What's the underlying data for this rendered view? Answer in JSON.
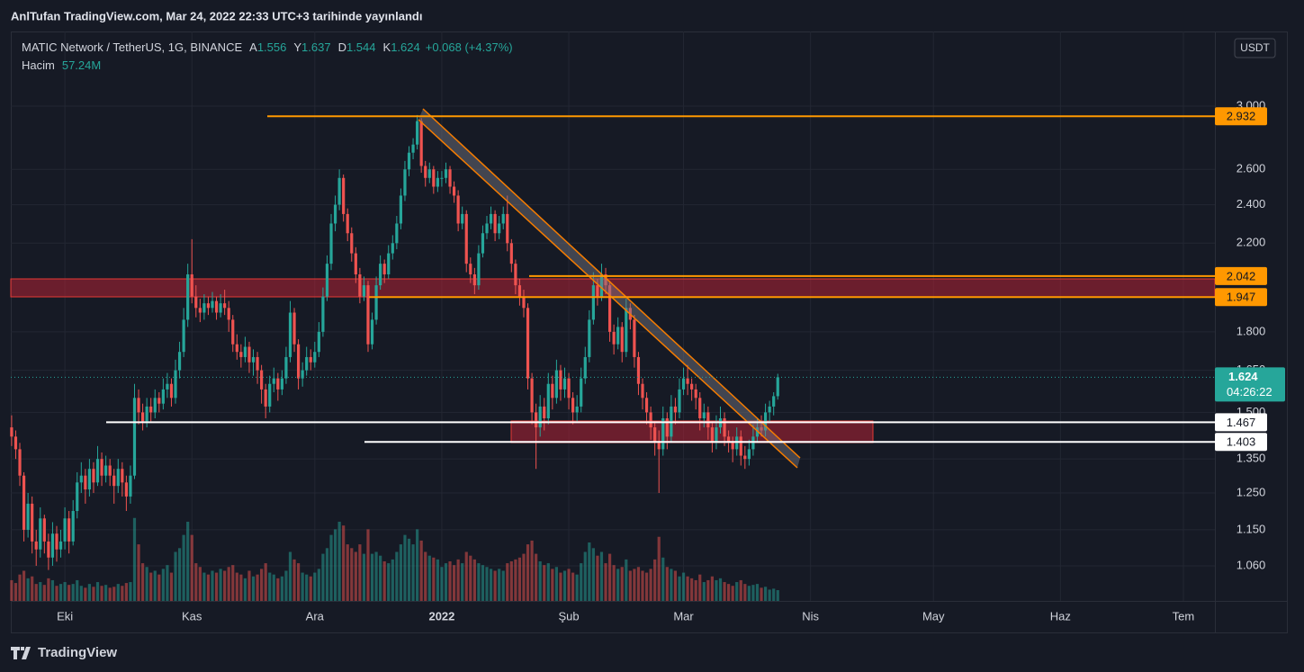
{
  "header": "AnlTufan TradingView.com, Mar 24, 2022 22:33 UTC+3 tarihinde yayınlandı",
  "brand": "TradingView",
  "currency": "USDT",
  "chart_data": {
    "type": "candlestick",
    "title": "MATIC Network / TetherUS, 1G, BINANCE",
    "ohlc_labels": [
      "A",
      "Y",
      "D",
      "K"
    ],
    "change_label": "+0.068 (+4.37%)",
    "countdown": "04:26:22",
    "log_scale": true,
    "grid": true,
    "up_color": "#26a69a",
    "down_color": "#ef5350",
    "xlim": [
      -0.2,
      293.7
    ],
    "xticks": [
      {
        "value": 13,
        "label": "Eki"
      },
      {
        "value": 44,
        "label": "Kas"
      },
      {
        "value": 74,
        "label": "Ara"
      },
      {
        "value": 105,
        "label": "2022"
      },
      {
        "value": 136,
        "label": "Şub"
      },
      {
        "value": 164,
        "label": "Mar"
      },
      {
        "value": 195,
        "label": "Nis"
      },
      {
        "value": 225,
        "label": "May"
      },
      {
        "value": 256,
        "label": "Haz"
      },
      {
        "value": 286,
        "label": "Tem"
      }
    ],
    "ylim": [
      0.979,
      3.552
    ],
    "yticks": [
      {
        "value": 3,
        "label": "3.000"
      },
      {
        "value": 2.6,
        "label": "2.600"
      },
      {
        "value": 2.4,
        "label": "2.400"
      },
      {
        "value": 2.2,
        "label": "2.200"
      },
      {
        "value": 1.8,
        "label": "1.800"
      },
      {
        "value": 1.65,
        "label": "1.650"
      },
      {
        "value": 1.5,
        "label": "1.500"
      },
      {
        "value": 1.35,
        "label": "1.350"
      },
      {
        "value": 1.25,
        "label": "1.250"
      },
      {
        "value": 1.15,
        "label": "1.150"
      },
      {
        "value": 1.06,
        "label": "1.060"
      }
    ],
    "levels": [
      {
        "value": 2.932,
        "color": "#ff9800"
      },
      {
        "value": 2.042,
        "color": "#ff9800"
      },
      {
        "value": 1.947,
        "color": "#ff9800"
      },
      {
        "value": 1.467,
        "color": "#ffffff"
      },
      {
        "value": 1.403,
        "color": "#ffffff"
      }
    ],
    "candles": [
      [
        1.45,
        1.49,
        1.39,
        1.42
      ],
      [
        1.42,
        1.44,
        1.35,
        1.38
      ],
      [
        1.38,
        1.4,
        1.27,
        1.3
      ],
      [
        1.3,
        1.31,
        1.12,
        1.15
      ],
      [
        1.15,
        1.25,
        1.13,
        1.22
      ],
      [
        1.22,
        1.24,
        1.09,
        1.12
      ],
      [
        1.12,
        1.15,
        1.06,
        1.1
      ],
      [
        1.1,
        1.21,
        1.08,
        1.18
      ],
      [
        1.18,
        1.19,
        1.09,
        1.12
      ],
      [
        1.12,
        1.14,
        1.05,
        1.08
      ],
      [
        1.08,
        1.17,
        1.06,
        1.14
      ],
      [
        1.14,
        1.16,
        1.07,
        1.1
      ],
      [
        1.1,
        1.15,
        1.08,
        1.12
      ],
      [
        1.12,
        1.21,
        1.1,
        1.18
      ],
      [
        1.18,
        1.2,
        1.09,
        1.12
      ],
      [
        1.12,
        1.23,
        1.11,
        1.2
      ],
      [
        1.2,
        1.31,
        1.18,
        1.28
      ],
      [
        1.28,
        1.34,
        1.25,
        1.3
      ],
      [
        1.3,
        1.32,
        1.22,
        1.26
      ],
      [
        1.26,
        1.35,
        1.24,
        1.32
      ],
      [
        1.32,
        1.34,
        1.25,
        1.28
      ],
      [
        1.28,
        1.39,
        1.27,
        1.35
      ],
      [
        1.35,
        1.37,
        1.27,
        1.3
      ],
      [
        1.3,
        1.36,
        1.28,
        1.33
      ],
      [
        1.33,
        1.35,
        1.27,
        1.3
      ],
      [
        1.3,
        1.32,
        1.22,
        1.27
      ],
      [
        1.27,
        1.35,
        1.25,
        1.32
      ],
      [
        1.32,
        1.34,
        1.24,
        1.28
      ],
      [
        1.28,
        1.3,
        1.2,
        1.24
      ],
      [
        1.24,
        1.33,
        1.22,
        1.3
      ],
      [
        1.3,
        1.6,
        1.29,
        1.55
      ],
      [
        1.55,
        1.58,
        1.46,
        1.5
      ],
      [
        1.5,
        1.53,
        1.44,
        1.47
      ],
      [
        1.47,
        1.55,
        1.45,
        1.52
      ],
      [
        1.52,
        1.55,
        1.47,
        1.5
      ],
      [
        1.5,
        1.58,
        1.48,
        1.55
      ],
      [
        1.55,
        1.57,
        1.5,
        1.53
      ],
      [
        1.53,
        1.62,
        1.51,
        1.58
      ],
      [
        1.58,
        1.64,
        1.55,
        1.6
      ],
      [
        1.6,
        1.62,
        1.52,
        1.55
      ],
      [
        1.55,
        1.69,
        1.53,
        1.65
      ],
      [
        1.65,
        1.76,
        1.62,
        1.72
      ],
      [
        1.72,
        1.9,
        1.7,
        1.85
      ],
      [
        1.85,
        2.1,
        1.82,
        2.05
      ],
      [
        2.05,
        2.22,
        1.92,
        1.95
      ],
      [
        1.95,
        2.0,
        1.86,
        1.9
      ],
      [
        1.9,
        1.94,
        1.84,
        1.88
      ],
      [
        1.88,
        1.96,
        1.85,
        1.92
      ],
      [
        1.92,
        1.95,
        1.87,
        1.9
      ],
      [
        1.9,
        1.97,
        1.88,
        1.93
      ],
      [
        1.93,
        1.95,
        1.85,
        1.88
      ],
      [
        1.88,
        1.96,
        1.86,
        1.92
      ],
      [
        1.92,
        1.98,
        1.87,
        1.9
      ],
      [
        1.9,
        1.93,
        1.8,
        1.85
      ],
      [
        1.85,
        1.87,
        1.72,
        1.75
      ],
      [
        1.75,
        1.79,
        1.69,
        1.72
      ],
      [
        1.72,
        1.75,
        1.66,
        1.7
      ],
      [
        1.7,
        1.78,
        1.68,
        1.74
      ],
      [
        1.74,
        1.76,
        1.64,
        1.68
      ],
      [
        1.68,
        1.73,
        1.63,
        1.7
      ],
      [
        1.7,
        1.72,
        1.6,
        1.65
      ],
      [
        1.65,
        1.67,
        1.53,
        1.58
      ],
      [
        1.58,
        1.6,
        1.48,
        1.52
      ],
      [
        1.52,
        1.63,
        1.5,
        1.6
      ],
      [
        1.6,
        1.66,
        1.57,
        1.62
      ],
      [
        1.62,
        1.64,
        1.54,
        1.58
      ],
      [
        1.58,
        1.65,
        1.56,
        1.62
      ],
      [
        1.62,
        1.74,
        1.6,
        1.7
      ],
      [
        1.7,
        1.93,
        1.68,
        1.88
      ],
      [
        1.88,
        1.9,
        1.72,
        1.75
      ],
      [
        1.75,
        1.77,
        1.58,
        1.62
      ],
      [
        1.62,
        1.68,
        1.59,
        1.65
      ],
      [
        1.65,
        1.74,
        1.63,
        1.7
      ],
      [
        1.7,
        1.73,
        1.65,
        1.68
      ],
      [
        1.68,
        1.76,
        1.66,
        1.72
      ],
      [
        1.72,
        1.84,
        1.7,
        1.8
      ],
      [
        1.8,
        1.99,
        1.78,
        1.95
      ],
      [
        1.95,
        2.14,
        1.93,
        2.1
      ],
      [
        2.1,
        2.35,
        2.07,
        2.3
      ],
      [
        2.3,
        2.45,
        2.26,
        2.4
      ],
      [
        2.4,
        2.6,
        2.37,
        2.55
      ],
      [
        2.55,
        2.57,
        2.31,
        2.35
      ],
      [
        2.35,
        2.38,
        2.21,
        2.25
      ],
      [
        2.25,
        2.28,
        2.11,
        2.15
      ],
      [
        2.15,
        2.18,
        2.01,
        2.05
      ],
      [
        2.05,
        2.08,
        1.92,
        1.95
      ],
      [
        1.95,
        2.04,
        1.93,
        2.0
      ],
      [
        2.0,
        2.02,
        1.72,
        1.75
      ],
      [
        1.75,
        1.88,
        1.73,
        1.85
      ],
      [
        1.85,
        2.04,
        1.83,
        2.0
      ],
      [
        2.0,
        2.14,
        1.98,
        2.1
      ],
      [
        2.1,
        2.12,
        2.01,
        2.05
      ],
      [
        2.05,
        2.19,
        2.03,
        2.15
      ],
      [
        2.15,
        2.24,
        2.12,
        2.2
      ],
      [
        2.2,
        2.34,
        2.17,
        2.3
      ],
      [
        2.3,
        2.49,
        2.27,
        2.45
      ],
      [
        2.45,
        2.65,
        2.42,
        2.6
      ],
      [
        2.6,
        2.74,
        2.56,
        2.7
      ],
      [
        2.7,
        2.79,
        2.66,
        2.75
      ],
      [
        2.75,
        2.94,
        2.72,
        2.9
      ],
      [
        2.9,
        2.92,
        2.58,
        2.62
      ],
      [
        2.62,
        2.65,
        2.5,
        2.55
      ],
      [
        2.55,
        2.64,
        2.52,
        2.6
      ],
      [
        2.6,
        2.62,
        2.46,
        2.5
      ],
      [
        2.5,
        2.59,
        2.47,
        2.55
      ],
      [
        2.55,
        2.59,
        2.5,
        2.55
      ],
      [
        2.55,
        2.64,
        2.52,
        2.6
      ],
      [
        2.6,
        2.62,
        2.46,
        2.5
      ],
      [
        2.5,
        2.53,
        2.41,
        2.45
      ],
      [
        2.45,
        2.48,
        2.26,
        2.3
      ],
      [
        2.3,
        2.39,
        2.27,
        2.35
      ],
      [
        2.35,
        2.37,
        2.06,
        2.1
      ],
      [
        2.1,
        2.13,
        2.01,
        2.05
      ],
      [
        2.05,
        2.08,
        1.96,
        2.0
      ],
      [
        2.0,
        2.19,
        1.98,
        2.15
      ],
      [
        2.15,
        2.29,
        2.13,
        2.25
      ],
      [
        2.25,
        2.34,
        2.22,
        2.3
      ],
      [
        2.3,
        2.39,
        2.27,
        2.35
      ],
      [
        2.35,
        2.37,
        2.21,
        2.25
      ],
      [
        2.25,
        2.34,
        2.22,
        2.3
      ],
      [
        2.3,
        2.39,
        2.27,
        2.35
      ],
      [
        2.35,
        2.45,
        2.16,
        2.2
      ],
      [
        2.2,
        2.22,
        2.06,
        2.1
      ],
      [
        2.1,
        2.12,
        1.96,
        2.0
      ],
      [
        2.0,
        2.03,
        1.91,
        1.95
      ],
      [
        1.95,
        1.98,
        1.86,
        1.9
      ],
      [
        1.9,
        1.92,
        1.58,
        1.62
      ],
      [
        1.62,
        1.64,
        1.46,
        1.5
      ],
      [
        1.5,
        1.53,
        1.32,
        1.45
      ],
      [
        1.45,
        1.56,
        1.42,
        1.52
      ],
      [
        1.52,
        1.55,
        1.44,
        1.48
      ],
      [
        1.48,
        1.64,
        1.46,
        1.6
      ],
      [
        1.6,
        1.63,
        1.51,
        1.55
      ],
      [
        1.55,
        1.69,
        1.53,
        1.65
      ],
      [
        1.65,
        1.67,
        1.54,
        1.58
      ],
      [
        1.58,
        1.66,
        1.55,
        1.62
      ],
      [
        1.62,
        1.64,
        1.51,
        1.55
      ],
      [
        1.55,
        1.57,
        1.46,
        1.5
      ],
      [
        1.5,
        1.56,
        1.47,
        1.52
      ],
      [
        1.52,
        1.66,
        1.5,
        1.62
      ],
      [
        1.62,
        1.74,
        1.6,
        1.7
      ],
      [
        1.7,
        1.89,
        1.68,
        1.85
      ],
      [
        1.85,
        2.06,
        1.83,
        2.0
      ],
      [
        2.0,
        2.03,
        1.91,
        1.95
      ],
      [
        1.95,
        2.1,
        1.93,
        2.05
      ],
      [
        2.05,
        2.08,
        1.96,
        2.0
      ],
      [
        2.0,
        2.02,
        1.76,
        1.8
      ],
      [
        1.8,
        1.83,
        1.71,
        1.75
      ],
      [
        1.75,
        1.86,
        1.73,
        1.82
      ],
      [
        1.82,
        1.84,
        1.68,
        1.72
      ],
      [
        1.72,
        1.94,
        1.7,
        1.9
      ],
      [
        1.9,
        1.92,
        1.81,
        1.85
      ],
      [
        1.85,
        1.87,
        1.66,
        1.7
      ],
      [
        1.7,
        1.72,
        1.56,
        1.6
      ],
      [
        1.6,
        1.62,
        1.51,
        1.55
      ],
      [
        1.55,
        1.57,
        1.46,
        1.5
      ],
      [
        1.5,
        1.52,
        1.41,
        1.45
      ],
      [
        1.45,
        1.47,
        1.36,
        1.4
      ],
      [
        1.4,
        1.44,
        1.25,
        1.38
      ],
      [
        1.38,
        1.52,
        1.36,
        1.48
      ],
      [
        1.48,
        1.5,
        1.38,
        1.42
      ],
      [
        1.42,
        1.56,
        1.4,
        1.52
      ],
      [
        1.52,
        1.55,
        1.46,
        1.5
      ],
      [
        1.5,
        1.62,
        1.48,
        1.58
      ],
      [
        1.58,
        1.66,
        1.56,
        1.62
      ],
      [
        1.62,
        1.67,
        1.56,
        1.6
      ],
      [
        1.6,
        1.62,
        1.54,
        1.58
      ],
      [
        1.58,
        1.6,
        1.51,
        1.55
      ],
      [
        1.55,
        1.57,
        1.44,
        1.48
      ],
      [
        1.48,
        1.53,
        1.45,
        1.5
      ],
      [
        1.5,
        1.52,
        1.41,
        1.45
      ],
      [
        1.45,
        1.47,
        1.37,
        1.4
      ],
      [
        1.4,
        1.49,
        1.38,
        1.45
      ],
      [
        1.45,
        1.52,
        1.43,
        1.48
      ],
      [
        1.48,
        1.5,
        1.39,
        1.42
      ],
      [
        1.42,
        1.44,
        1.37,
        1.4
      ],
      [
        1.4,
        1.42,
        1.34,
        1.38
      ],
      [
        1.38,
        1.45,
        1.36,
        1.42
      ],
      [
        1.42,
        1.44,
        1.33,
        1.36
      ],
      [
        1.36,
        1.39,
        1.32,
        1.35
      ],
      [
        1.35,
        1.41,
        1.33,
        1.38
      ],
      [
        1.38,
        1.46,
        1.36,
        1.42
      ],
      [
        1.42,
        1.48,
        1.4,
        1.45
      ],
      [
        1.45,
        1.49,
        1.42,
        1.44
      ],
      [
        1.44,
        1.53,
        1.42,
        1.5
      ],
      [
        1.5,
        1.54,
        1.47,
        1.52
      ],
      [
        1.52,
        1.57,
        1.49,
        1.556
      ],
      [
        1.556,
        1.637,
        1.544,
        1.624
      ]
    ],
    "volume": {
      "name": "Hacim",
      "last_value_label": "57.24M",
      "values": [
        110,
        95,
        140,
        160,
        120,
        130,
        90,
        100,
        85,
        120,
        110,
        80,
        90,
        100,
        85,
        90,
        110,
        80,
        70,
        90,
        75,
        100,
        80,
        85,
        70,
        75,
        90,
        80,
        95,
        100,
        440,
        300,
        200,
        180,
        150,
        160,
        140,
        170,
        190,
        150,
        260,
        280,
        350,
        420,
        350,
        200,
        180,
        150,
        140,
        160,
        150,
        170,
        160,
        180,
        190,
        150,
        140,
        120,
        160,
        130,
        140,
        170,
        200,
        150,
        140,
        120,
        130,
        160,
        260,
        220,
        200,
        150,
        140,
        130,
        150,
        170,
        250,
        280,
        350,
        380,
        420,
        400,
        300,
        280,
        260,
        300,
        250,
        380,
        250,
        260,
        240,
        210,
        200,
        220,
        260,
        300,
        350,
        330,
        300,
        380,
        320,
        260,
        240,
        230,
        220,
        180,
        200,
        210,
        190,
        220,
        200,
        260,
        240,
        220,
        200,
        190,
        180,
        170,
        160,
        170,
        160,
        200,
        210,
        220,
        230,
        250,
        300,
        320,
        250,
        210,
        190,
        200,
        170,
        180,
        150,
        160,
        170,
        150,
        140,
        200,
        260,
        310,
        280,
        240,
        260,
        200,
        250,
        190,
        170,
        180,
        220,
        160,
        170,
        180,
        160,
        150,
        170,
        220,
        340,
        230,
        180,
        170,
        160,
        130,
        150,
        130,
        120,
        110,
        140,
        100,
        110,
        130,
        110,
        120,
        100,
        90,
        80,
        100,
        110,
        90,
        80,
        85,
        90,
        70,
        75,
        60,
        65,
        57.24
      ]
    }
  }
}
